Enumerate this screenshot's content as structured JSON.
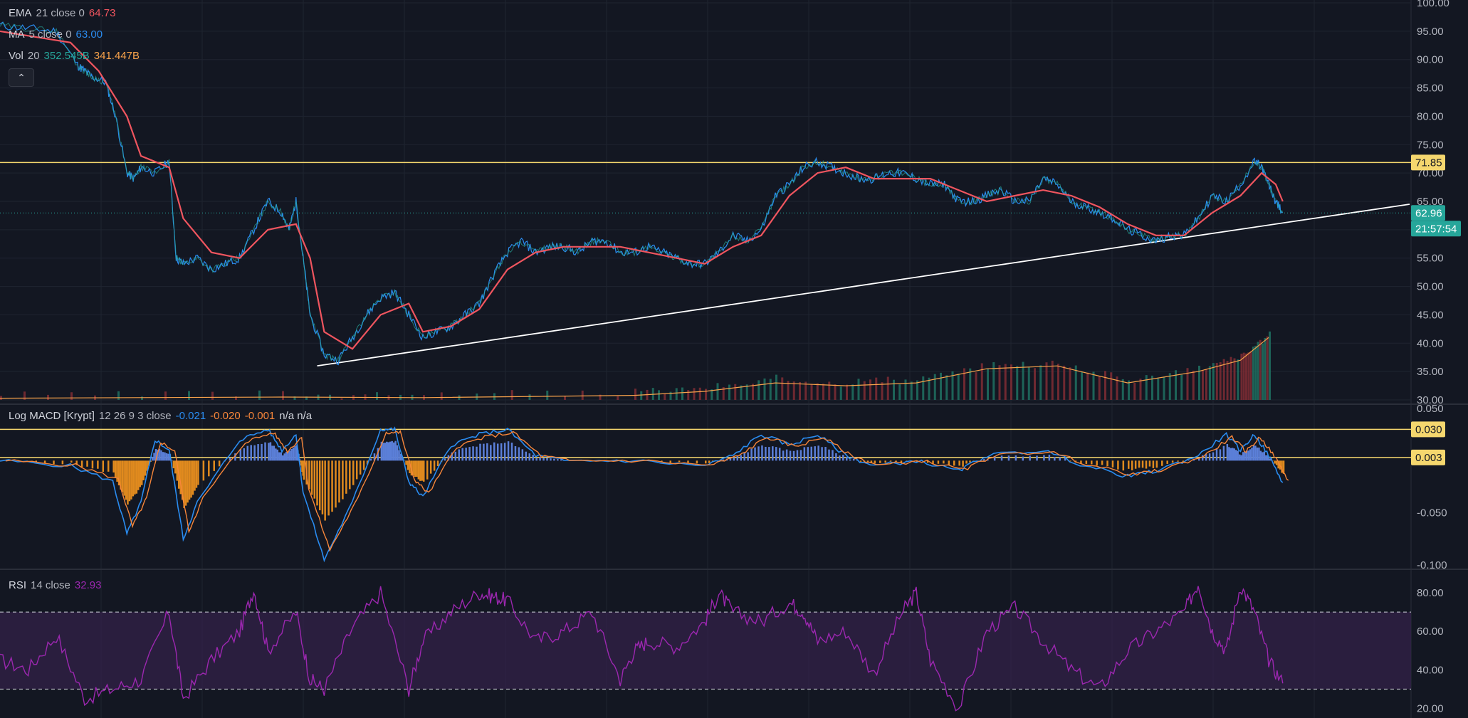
{
  "legend": {
    "ema": {
      "name": "EMA",
      "params": "21 close 0",
      "value": "64.73",
      "color": "#f0555f"
    },
    "ma": {
      "name": "MA",
      "params": "5 close 0",
      "value": "63.00",
      "color": "#2a8cf0"
    },
    "vol": {
      "name": "Vol",
      "params": "20",
      "value1": "352.545B",
      "value2": "341.447B",
      "color1": "#26a69a",
      "color2": "#f7a24b"
    },
    "macd": {
      "name": "Log MACD [Krypt]",
      "params": "12 26 9 3 close",
      "v1": "-0.021",
      "v2": "-0.020",
      "v3": "-0.001",
      "na": "n/a n/a",
      "c1": "#2a8cf0",
      "c2": "#f7863a",
      "c3": "#f7863a"
    },
    "rsi": {
      "name": "RSI",
      "params": "14 close",
      "value": "32.93",
      "color": "#9c27b0"
    }
  },
  "collapse_icon": "chevron-up-icon",
  "price_axis": {
    "ticks": [
      "100.00",
      "95.00",
      "90.00",
      "85.00",
      "80.00",
      "75.00",
      "70.00",
      "65.00",
      "60.00",
      "55.00",
      "50.00",
      "45.00",
      "40.00",
      "35.00",
      "30.00"
    ],
    "tags": {
      "resistance": {
        "text": "71.85",
        "value": 71.85,
        "bg": "#f5d76e",
        "fg": "#131722"
      },
      "last": {
        "text": "62.96",
        "value": 62.96,
        "bg": "#26a69a",
        "fg": "#ffffff"
      },
      "countdown": {
        "text": "21:57:54",
        "bg": "#26a69a",
        "fg": "#ffffff"
      }
    }
  },
  "macd_axis": {
    "ticks": [
      "0.050",
      "-0.050",
      "-0.100"
    ],
    "tags": [
      {
        "text": "0.030",
        "value": 0.03,
        "bg": "#f5d76e",
        "fg": "#131722"
      },
      {
        "text": "0.003",
        "value": 0.003,
        "bg": "#f5d76e",
        "fg": "#131722"
      }
    ]
  },
  "rsi_axis": {
    "ticks": [
      "80.00",
      "60.00",
      "40.00",
      "20.00"
    ],
    "upper_band": 70,
    "lower_band": 30
  },
  "chart_data": [
    {
      "type": "line",
      "ylim": [
        30,
        100
      ],
      "horizontal_lines": [
        {
          "value": 71.85,
          "color": "#f5d76e"
        }
      ],
      "trendline": {
        "from": {
          "bar": 0.225,
          "value": 36.0
        },
        "to": {
          "bar": 1.0,
          "value": 64.5
        }
      },
      "price_path": [
        [
          0,
          96
        ],
        [
          0.02,
          95.5
        ],
        [
          0.04,
          95
        ],
        [
          0.055,
          89
        ],
        [
          0.06,
          88
        ],
        [
          0.065,
          87
        ],
        [
          0.075,
          86
        ],
        [
          0.082,
          80
        ],
        [
          0.09,
          70
        ],
        [
          0.095,
          69
        ],
        [
          0.1,
          71
        ],
        [
          0.11,
          70
        ],
        [
          0.12,
          72
        ],
        [
          0.125,
          55
        ],
        [
          0.13,
          54
        ],
        [
          0.14,
          55
        ],
        [
          0.15,
          53
        ],
        [
          0.16,
          54
        ],
        [
          0.17,
          55
        ],
        [
          0.18,
          60
        ],
        [
          0.19,
          65
        ],
        [
          0.2,
          63
        ],
        [
          0.205,
          60
        ],
        [
          0.21,
          65
        ],
        [
          0.215,
          55
        ],
        [
          0.22,
          45
        ],
        [
          0.23,
          38
        ],
        [
          0.24,
          37
        ],
        [
          0.25,
          41
        ],
        [
          0.26,
          45
        ],
        [
          0.27,
          48
        ],
        [
          0.28,
          49
        ],
        [
          0.29,
          45
        ],
        [
          0.3,
          41
        ],
        [
          0.31,
          42
        ],
        [
          0.32,
          43
        ],
        [
          0.33,
          45
        ],
        [
          0.34,
          47
        ],
        [
          0.35,
          52
        ],
        [
          0.36,
          56
        ],
        [
          0.37,
          58
        ],
        [
          0.38,
          56
        ],
        [
          0.39,
          57
        ],
        [
          0.4,
          57
        ],
        [
          0.41,
          56
        ],
        [
          0.42,
          58
        ],
        [
          0.43,
          58
        ],
        [
          0.44,
          56
        ],
        [
          0.45,
          56
        ],
        [
          0.46,
          57
        ],
        [
          0.47,
          56
        ],
        [
          0.48,
          55
        ],
        [
          0.49,
          54
        ],
        [
          0.5,
          54
        ],
        [
          0.51,
          56
        ],
        [
          0.52,
          59
        ],
        [
          0.53,
          58
        ],
        [
          0.54,
          60
        ],
        [
          0.55,
          66
        ],
        [
          0.56,
          68
        ],
        [
          0.57,
          71
        ],
        [
          0.58,
          72
        ],
        [
          0.59,
          71
        ],
        [
          0.6,
          70
        ],
        [
          0.61,
          69
        ],
        [
          0.62,
          69
        ],
        [
          0.63,
          70
        ],
        [
          0.64,
          70
        ],
        [
          0.65,
          69
        ],
        [
          0.66,
          68
        ],
        [
          0.67,
          68
        ],
        [
          0.68,
          65
        ],
        [
          0.69,
          65
        ],
        [
          0.7,
          66
        ],
        [
          0.71,
          67
        ],
        [
          0.72,
          65
        ],
        [
          0.73,
          65
        ],
        [
          0.74,
          69
        ],
        [
          0.75,
          68
        ],
        [
          0.76,
          65
        ],
        [
          0.77,
          64
        ],
        [
          0.78,
          63
        ],
        [
          0.79,
          62
        ],
        [
          0.8,
          60
        ],
        [
          0.81,
          59
        ],
        [
          0.82,
          58
        ],
        [
          0.83,
          59
        ],
        [
          0.84,
          59
        ],
        [
          0.85,
          62
        ],
        [
          0.86,
          66
        ],
        [
          0.87,
          65
        ],
        [
          0.88,
          68
        ],
        [
          0.89,
          72
        ],
        [
          0.895,
          71
        ],
        [
          0.9,
          68
        ],
        [
          0.905,
          65
        ],
        [
          0.91,
          63
        ]
      ],
      "ema_path": [
        [
          0,
          95
        ],
        [
          0.05,
          93
        ],
        [
          0.07,
          88
        ],
        [
          0.09,
          80
        ],
        [
          0.1,
          73
        ],
        [
          0.12,
          71
        ],
        [
          0.13,
          62
        ],
        [
          0.15,
          56
        ],
        [
          0.17,
          55
        ],
        [
          0.19,
          60
        ],
        [
          0.21,
          61
        ],
        [
          0.22,
          55
        ],
        [
          0.23,
          42
        ],
        [
          0.25,
          39
        ],
        [
          0.27,
          45
        ],
        [
          0.29,
          47
        ],
        [
          0.3,
          42
        ],
        [
          0.32,
          43
        ],
        [
          0.34,
          46
        ],
        [
          0.36,
          53
        ],
        [
          0.38,
          56
        ],
        [
          0.4,
          57
        ],
        [
          0.42,
          57
        ],
        [
          0.44,
          57
        ],
        [
          0.46,
          56
        ],
        [
          0.48,
          55
        ],
        [
          0.5,
          54
        ],
        [
          0.52,
          57
        ],
        [
          0.54,
          59
        ],
        [
          0.56,
          66
        ],
        [
          0.58,
          70
        ],
        [
          0.6,
          71
        ],
        [
          0.62,
          69
        ],
        [
          0.64,
          69
        ],
        [
          0.66,
          69
        ],
        [
          0.68,
          67
        ],
        [
          0.7,
          65
        ],
        [
          0.72,
          66
        ],
        [
          0.74,
          67
        ],
        [
          0.76,
          66
        ],
        [
          0.78,
          64
        ],
        [
          0.8,
          61
        ],
        [
          0.82,
          59
        ],
        [
          0.84,
          59
        ],
        [
          0.86,
          63
        ],
        [
          0.88,
          66
        ],
        [
          0.895,
          70
        ],
        [
          0.905,
          68
        ],
        [
          0.91,
          65
        ]
      ],
      "volume_path": [
        [
          0,
          30.3
        ],
        [
          0.2,
          30.5
        ],
        [
          0.3,
          30.4
        ],
        [
          0.45,
          30.8
        ],
        [
          0.5,
          31.5
        ],
        [
          0.55,
          33
        ],
        [
          0.6,
          32.5
        ],
        [
          0.65,
          33
        ],
        [
          0.7,
          35.5
        ],
        [
          0.75,
          36
        ],
        [
          0.8,
          33
        ],
        [
          0.85,
          35
        ],
        [
          0.88,
          37
        ],
        [
          0.9,
          41
        ]
      ],
      "volume_color": "#f7a24b"
    },
    {
      "type": "line",
      "ylim": [
        -0.1,
        0.05
      ],
      "horizontal_lines": [
        {
          "value": 0.03,
          "color": "#f5d76e"
        },
        {
          "value": 0.003,
          "color": "#f5d76e"
        }
      ],
      "macd_path": [
        [
          0,
          0
        ],
        [
          0.05,
          -0.005
        ],
        [
          0.08,
          -0.02
        ],
        [
          0.09,
          -0.07
        ],
        [
          0.1,
          -0.04
        ],
        [
          0.11,
          0.02
        ],
        [
          0.12,
          0.01
        ],
        [
          0.13,
          -0.075
        ],
        [
          0.14,
          -0.04
        ],
        [
          0.17,
          0.02
        ],
        [
          0.19,
          0.03
        ],
        [
          0.2,
          0.01
        ],
        [
          0.21,
          0.025
        ],
        [
          0.215,
          -0.03
        ],
        [
          0.23,
          -0.095
        ],
        [
          0.25,
          -0.04
        ],
        [
          0.27,
          0.03
        ],
        [
          0.28,
          0.03
        ],
        [
          0.29,
          -0.02
        ],
        [
          0.3,
          -0.035
        ],
        [
          0.32,
          0.015
        ],
        [
          0.34,
          0.025
        ],
        [
          0.36,
          0.03
        ],
        [
          0.38,
          0.005
        ],
        [
          0.4,
          0
        ],
        [
          0.45,
          0
        ],
        [
          0.5,
          -0.005
        ],
        [
          0.52,
          0.005
        ],
        [
          0.54,
          0.025
        ],
        [
          0.56,
          0.015
        ],
        [
          0.58,
          0.025
        ],
        [
          0.6,
          0.005
        ],
        [
          0.62,
          -0.005
        ],
        [
          0.65,
          0
        ],
        [
          0.68,
          -0.01
        ],
        [
          0.7,
          0.005
        ],
        [
          0.74,
          0.01
        ],
        [
          0.77,
          -0.005
        ],
        [
          0.8,
          -0.015
        ],
        [
          0.82,
          -0.01
        ],
        [
          0.85,
          0.005
        ],
        [
          0.87,
          0.025
        ],
        [
          0.88,
          0.01
        ],
        [
          0.89,
          0.025
        ],
        [
          0.9,
          0.005
        ],
        [
          0.91,
          -0.021
        ]
      ],
      "histogram_colors": {
        "positive": "#5b7fd8",
        "negative": "#e08a1e"
      },
      "macd_color": "#2a8cf0",
      "signal_color": "#f7863a"
    },
    {
      "type": "line",
      "ylim": [
        15,
        90
      ],
      "bands": {
        "upper": 70,
        "lower": 30,
        "fill": "#3b2352"
      },
      "rsi_path": [
        [
          0,
          45
        ],
        [
          0.02,
          40
        ],
        [
          0.04,
          58
        ],
        [
          0.06,
          25
        ],
        [
          0.08,
          30
        ],
        [
          0.1,
          35
        ],
        [
          0.12,
          70
        ],
        [
          0.13,
          25
        ],
        [
          0.15,
          45
        ],
        [
          0.17,
          60
        ],
        [
          0.18,
          82
        ],
        [
          0.19,
          50
        ],
        [
          0.21,
          70
        ],
        [
          0.22,
          35
        ],
        [
          0.23,
          30
        ],
        [
          0.25,
          62
        ],
        [
          0.27,
          80
        ],
        [
          0.29,
          30
        ],
        [
          0.3,
          55
        ],
        [
          0.32,
          70
        ],
        [
          0.34,
          80
        ],
        [
          0.35,
          78
        ],
        [
          0.36,
          76
        ],
        [
          0.38,
          55
        ],
        [
          0.4,
          60
        ],
        [
          0.42,
          70
        ],
        [
          0.44,
          35
        ],
        [
          0.45,
          50
        ],
        [
          0.46,
          55
        ],
        [
          0.48,
          52
        ],
        [
          0.5,
          65
        ],
        [
          0.51,
          80
        ],
        [
          0.52,
          70
        ],
        [
          0.54,
          65
        ],
        [
          0.56,
          75
        ],
        [
          0.57,
          70
        ],
        [
          0.58,
          55
        ],
        [
          0.6,
          60
        ],
        [
          0.62,
          38
        ],
        [
          0.64,
          70
        ],
        [
          0.65,
          80
        ],
        [
          0.66,
          45
        ],
        [
          0.68,
          20
        ],
        [
          0.7,
          60
        ],
        [
          0.72,
          72
        ],
        [
          0.74,
          55
        ],
        [
          0.76,
          40
        ],
        [
          0.78,
          30
        ],
        [
          0.8,
          50
        ],
        [
          0.82,
          60
        ],
        [
          0.84,
          70
        ],
        [
          0.85,
          85
        ],
        [
          0.86,
          60
        ],
        [
          0.87,
          50
        ],
        [
          0.88,
          84
        ],
        [
          0.89,
          70
        ],
        [
          0.9,
          45
        ],
        [
          0.91,
          33
        ]
      ],
      "rsi_color": "#9c27b0"
    }
  ]
}
